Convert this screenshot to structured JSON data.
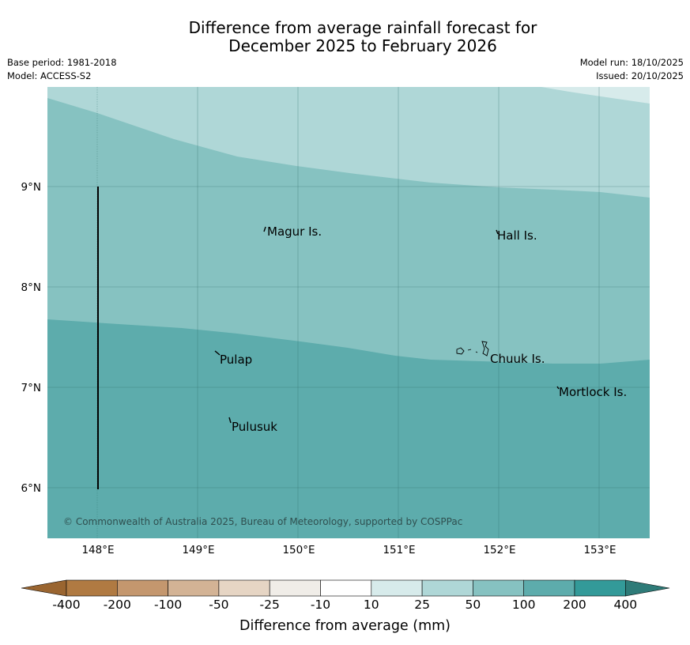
{
  "title": {
    "line1": "Difference from average rainfall forecast for",
    "line2": "December 2025 to February 2026"
  },
  "meta": {
    "base_period": "Base period: 1981-2018",
    "model": "Model: ACCESS-S2",
    "model_run": "Model run: 18/10/2025",
    "issued": "Issued: 20/10/2025"
  },
  "map": {
    "lat_ticks": [
      "9°N",
      "8°N",
      "7°N",
      "6°N"
    ],
    "lon_ticks": [
      "148°E",
      "149°E",
      "150°E",
      "151°E",
      "152°E",
      "153°E"
    ],
    "places": [
      "Magur Is.",
      "Hall Is.",
      "Pulap",
      "Chuuk Is.",
      "Mortlock Is.",
      "Pulusuk"
    ],
    "copyright": "© Commonwealth of Australia 2025, Bureau of Meteorology, supported by COSPPac"
  },
  "legend": {
    "title": "Difference from average (mm)",
    "labels": [
      "-400",
      "-200",
      "-100",
      "-50",
      "-25",
      "-10",
      "10",
      "25",
      "50",
      "100",
      "200",
      "400"
    ],
    "colors": {
      "below_min": "#9a6530",
      "bins": [
        "#b07a42",
        "#c4976e",
        "#d3b395",
        "#e6d5c4",
        "#f0ede8",
        "#ffffff",
        "#d7ebeb",
        "#afd7d7",
        "#86c2c1",
        "#5dacac",
        "#339a99"
      ],
      "above_max": "#2e7b78"
    }
  }
}
